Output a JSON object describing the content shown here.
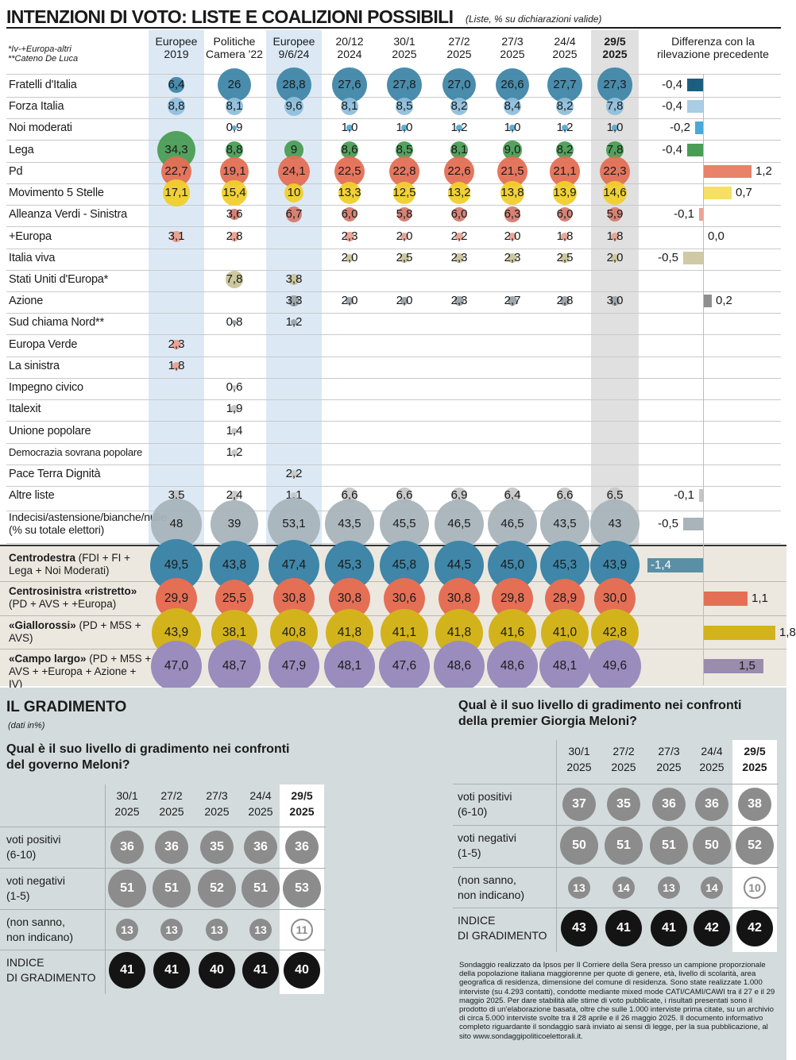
{
  "title": {
    "main": "INTENZIONI DI VOTO: LISTE E COALIZIONI POSSIBILI",
    "subtitle": "(Liste, % su dichiarazioni valide)"
  },
  "notes": {
    "line1": "*Iv-+Europa-altri",
    "line2": "**Cateno De Luca"
  },
  "diff_header": {
    "line1": "Differenza con la",
    "line2": "rilevazione precedente"
  },
  "columns": [
    {
      "line1": "Europee",
      "line2": "2019"
    },
    {
      "line1": "Politiche",
      "line2": "Camera '22"
    },
    {
      "line1": "Europee",
      "line2": "9/6/24"
    },
    {
      "line1": "20/12",
      "line2": "2024"
    },
    {
      "line1": "30/1",
      "line2": "2025"
    },
    {
      "line1": "27/2",
      "line2": "2025"
    },
    {
      "line1": "27/3",
      "line2": "2025"
    },
    {
      "line1": "24/4",
      "line2": "2025"
    },
    {
      "line1": "29/5",
      "line2": "2025"
    }
  ],
  "colors": {
    "fdi": "#3f86a8",
    "fi": "#8fbfdc",
    "nm": "#5aa9d2",
    "lega": "#4a9d55",
    "pd": "#e46f55",
    "m5s": "#f0cf2c",
    "avs": "#d37c6f",
    "piu_europa": "#e8a090",
    "italia_viva": "#c9c49a",
    "suef": "#c9c49a",
    "azione": "#9aa2a8",
    "scn": "#9aa2a8",
    "ev": "#e8a090",
    "lasin": "#e8a090",
    "altre": "#c7c7c7",
    "indecisi": "#a8b4bb",
    "centrodestra": "#3f86a8",
    "centrosinistra": "#e46f55",
    "giallorossi": "#d3b31c",
    "campo_largo": "#9a8cbd",
    "diff_fdi": "#1c5e82",
    "diff_fi": "#a8cde4",
    "diff_nm": "#4aa8d8",
    "diff_lega": "#4a9d55",
    "diff_pd": "#e8826a",
    "diff_m5s": "#f6df62",
    "diff_avs": "#eaa395",
    "diff_iv": "#cfcaa5",
    "diff_azione": "#8f8f8f",
    "diff_altre": "#c4c4c4",
    "diff_indecisi": "#a9b4ba",
    "diff_cdx": "#5a8fa5",
    "diff_csx": "#e46f55",
    "diff_gr": "#d3b31c",
    "diff_cl": "#9a8cad"
  },
  "chart_data": [
    {
      "type": "table",
      "title": "INTENZIONI DI VOTO: LISTE E COALIZIONI POSSIBILI",
      "subtitle": "(Liste, % su dichiarazioni valide)",
      "columns": [
        "Europee 2019",
        "Politiche Camera '22",
        "Europee 9/6/24",
        "20/12 2024",
        "30/1 2025",
        "27/2 2025",
        "27/3 2025",
        "24/4 2025",
        "29/5 2025"
      ],
      "rows": [
        {
          "key": "fdi",
          "name": "Fratelli d'Italia",
          "values": [
            "6,4",
            "26",
            "28,8",
            "27,6",
            "27,8",
            "27,0",
            "26,6",
            "27,7",
            "27,3"
          ],
          "diff": "-0,4"
        },
        {
          "key": "fi",
          "name": "Forza Italia",
          "values": [
            "8,8",
            "8,1",
            "9,6",
            "8,1",
            "8,5",
            "8,2",
            "8,4",
            "8,2",
            "7,8"
          ],
          "diff": "-0,4"
        },
        {
          "key": "nm",
          "name": "Noi moderati",
          "values": [
            null,
            "0,9",
            null,
            "1,0",
            "1,0",
            "1,2",
            "1,0",
            "1,2",
            "1,0"
          ],
          "diff": "-0,2"
        },
        {
          "key": "lega",
          "name": "Lega",
          "values": [
            "34,3",
            "8,8",
            "9",
            "8,6",
            "8,5",
            "8,1",
            "9,0",
            "8,2",
            "7,8"
          ],
          "diff": "-0,4"
        },
        {
          "key": "pd",
          "name": "Pd",
          "values": [
            "22,7",
            "19,1",
            "24,1",
            "22,5",
            "22,8",
            "22,6",
            "21,5",
            "21,1",
            "22,3"
          ],
          "diff": "1,2"
        },
        {
          "key": "m5s",
          "name": "Movimento 5 Stelle",
          "values": [
            "17,1",
            "15,4",
            "10",
            "13,3",
            "12,5",
            "13,2",
            "13,8",
            "13,9",
            "14,6"
          ],
          "diff": "0,7"
        },
        {
          "key": "avs",
          "name": "Alleanza Verdi - Sinistra",
          "values": [
            null,
            "3,6",
            "6,7",
            "6,0",
            "5,8",
            "6,0",
            "6,3",
            "6,0",
            "5,9"
          ],
          "diff": "-0,1"
        },
        {
          "key": "piu_europa",
          "name": "+Europa",
          "values": [
            "3,1",
            "2,8",
            null,
            "2,3",
            "2,0",
            "2,2",
            "2,0",
            "1,8",
            "1,8"
          ],
          "diff": "0,0"
        },
        {
          "key": "italia_viva",
          "name": "Italia viva",
          "values": [
            null,
            null,
            null,
            "2,0",
            "2,5",
            "2,3",
            "2,3",
            "2,5",
            "2,0"
          ],
          "diff": "-0,5"
        },
        {
          "key": "suef",
          "name": "Stati Uniti d'Europa*",
          "values": [
            null,
            "7,8",
            "3,8",
            null,
            null,
            null,
            null,
            null,
            null
          ],
          "diff": null
        },
        {
          "key": "azione",
          "name": "Azione",
          "values": [
            null,
            null,
            "3,3",
            "2,0",
            "2,0",
            "2,3",
            "2,7",
            "2,8",
            "3,0"
          ],
          "diff": "0,2"
        },
        {
          "key": "scn",
          "name": "Sud chiama Nord**",
          "values": [
            null,
            "0,8",
            "1,2",
            null,
            null,
            null,
            null,
            null,
            null
          ],
          "diff": null
        },
        {
          "key": "ev",
          "name": "Europa Verde",
          "values": [
            "2,3",
            null,
            null,
            null,
            null,
            null,
            null,
            null,
            null
          ],
          "diff": null
        },
        {
          "key": "lasin",
          "name": "La sinistra",
          "values": [
            "1,8",
            null,
            null,
            null,
            null,
            null,
            null,
            null,
            null
          ],
          "diff": null
        },
        {
          "key": "ic",
          "name": "Impegno civico",
          "values": [
            null,
            "0,6",
            null,
            null,
            null,
            null,
            null,
            null,
            null
          ],
          "diff": null
        },
        {
          "key": "italexit",
          "name": "Italexit",
          "values": [
            null,
            "1,9",
            null,
            null,
            null,
            null,
            null,
            null,
            null
          ],
          "diff": null
        },
        {
          "key": "up",
          "name": "Unione popolare",
          "values": [
            null,
            "1,4",
            null,
            null,
            null,
            null,
            null,
            null,
            null
          ],
          "diff": null
        },
        {
          "key": "dsp",
          "name": "Democrazia sovrana popolare",
          "values": [
            null,
            "1,2",
            null,
            null,
            null,
            null,
            null,
            null,
            null
          ],
          "diff": null
        },
        {
          "key": "ptd",
          "name": "Pace Terra Dignità",
          "values": [
            null,
            null,
            "2,2",
            null,
            null,
            null,
            null,
            null,
            null
          ],
          "diff": null
        },
        {
          "key": "altre",
          "name": "Altre liste",
          "values": [
            "3,5",
            "2,4",
            "1,1",
            "6,6",
            "6,6",
            "6,9",
            "6,4",
            "6,6",
            "6,5"
          ],
          "diff": "-0,1"
        },
        {
          "key": "indecisi",
          "name": "Indecisi/astensione/bianche/nulle (% su totale elettori)",
          "values": [
            "48",
            "39",
            "53,1",
            "43,5",
            "45,5",
            "46,5",
            "46,5",
            "43,5",
            "43"
          ],
          "diff": "-0,5"
        }
      ],
      "coalitions": [
        {
          "key": "centrodestra",
          "name": "Centrodestra",
          "detail": "(FDI + FI + Lega + Noi Moderati)",
          "values": [
            "49,5",
            "43,8",
            "47,4",
            "45,3",
            "45,8",
            "44,5",
            "45,0",
            "45,3",
            "43,9"
          ],
          "diff": "-1,4"
        },
        {
          "key": "centrosinistra",
          "name": "Centrosinistra «ristretto»",
          "detail": "(PD + AVS + +Europa)",
          "values": [
            "29,9",
            "25,5",
            "30,8",
            "30,8",
            "30,6",
            "30,8",
            "29,8",
            "28,9",
            "30,0"
          ],
          "diff": "1,1"
        },
        {
          "key": "giallorossi",
          "name": "«Giallorossi»",
          "detail": "(PD + M5S + AVS)",
          "values": [
            "43,9",
            "38,1",
            "40,8",
            "41,8",
            "41,1",
            "41,8",
            "41,6",
            "41,0",
            "42,8"
          ],
          "diff": "1,8"
        },
        {
          "key": "campo_largo",
          "name": "«Campo largo»",
          "detail": "(PD + M5S + AVS + +Europa + Azione + IV)",
          "values": [
            "47,0",
            "48,7",
            "47,9",
            "48,1",
            "47,6",
            "48,6",
            "48,6",
            "48,1",
            "49,6"
          ],
          "diff": "1,5"
        }
      ]
    },
    {
      "type": "table",
      "title": "Qual è il suo livello di gradimento nei confronti del governo Meloni?",
      "columns": [
        "30/1 2025",
        "27/2 2025",
        "27/3 2025",
        "24/4 2025",
        "29/5 2025"
      ],
      "rows": [
        {
          "name": "voti positivi (6-10)",
          "values": [
            36,
            36,
            35,
            36,
            36
          ]
        },
        {
          "name": "voti negativi (1-5)",
          "values": [
            51,
            51,
            52,
            51,
            53
          ]
        },
        {
          "name": "(non sanno, non indicano)",
          "values": [
            13,
            13,
            13,
            13,
            11
          ]
        },
        {
          "name": "INDICE DI GRADIMENTO",
          "values": [
            41,
            41,
            40,
            41,
            40
          ]
        }
      ]
    },
    {
      "type": "table",
      "title": "Qual è il suo livello di gradimento nei confronti della premier Giorgia Meloni?",
      "columns": [
        "30/1 2025",
        "27/2 2025",
        "27/3 2025",
        "24/4 2025",
        "29/5 2025"
      ],
      "rows": [
        {
          "name": "voti positivi (6-10)",
          "values": [
            37,
            35,
            36,
            36,
            38
          ]
        },
        {
          "name": "voti negativi (1-5)",
          "values": [
            50,
            51,
            51,
            50,
            52
          ]
        },
        {
          "name": "(non sanno, non indicano)",
          "values": [
            13,
            14,
            13,
            14,
            10
          ]
        },
        {
          "name": "INDICE DI GRADIMENTO",
          "values": [
            43,
            41,
            41,
            42,
            42
          ]
        }
      ]
    }
  ],
  "gradimento": {
    "heading": "IL GRADIMENTO",
    "note": "(dati in%)",
    "governo": {
      "q1": "Qual è il suo livello di gradimento nei confronti",
      "q2": "del governo Meloni?",
      "cols": [
        {
          "l1": "30/1",
          "l2": "2025"
        },
        {
          "l1": "27/2",
          "l2": "2025"
        },
        {
          "l1": "27/3",
          "l2": "2025"
        },
        {
          "l1": "24/4",
          "l2": "2025"
        },
        {
          "l1": "29/5",
          "l2": "2025"
        }
      ],
      "rows": [
        {
          "l1": "voti positivi",
          "l2": "(6-10)",
          "values": [
            36,
            36,
            35,
            36,
            36
          ]
        },
        {
          "l1": "voti negativi",
          "l2": "(1-5)",
          "values": [
            51,
            51,
            52,
            51,
            53
          ]
        },
        {
          "l1": "(non sanno,",
          "l2": "non indicano)",
          "values": [
            13,
            13,
            13,
            13,
            11
          ]
        },
        {
          "l1": "INDICE",
          "l2": "DI GRADIMENTO",
          "values": [
            41,
            41,
            40,
            41,
            40
          ]
        }
      ]
    },
    "premier": {
      "q1": "Qual è il suo livello di gradimento nei confronti",
      "q2": "della premier Giorgia Meloni?",
      "cols": [
        {
          "l1": "30/1",
          "l2": "2025"
        },
        {
          "l1": "27/2",
          "l2": "2025"
        },
        {
          "l1": "27/3",
          "l2": "2025"
        },
        {
          "l1": "24/4",
          "l2": "2025"
        },
        {
          "l1": "29/5",
          "l2": "2025"
        }
      ],
      "rows": [
        {
          "l1": "voti positivi",
          "l2": "(6-10)",
          "values": [
            37,
            35,
            36,
            36,
            38
          ]
        },
        {
          "l1": "voti negativi",
          "l2": "(1-5)",
          "values": [
            50,
            51,
            51,
            50,
            52
          ]
        },
        {
          "l1": "(non sanno,",
          "l2": "non indicano)",
          "values": [
            13,
            14,
            13,
            14,
            10
          ]
        },
        {
          "l1": "INDICE",
          "l2": "DI GRADIMENTO",
          "values": [
            43,
            41,
            41,
            42,
            42
          ]
        }
      ]
    }
  },
  "methodology": "Sondaggio realizzato da Ipsos per Il Corriere della Sera presso un campione proporzionale della popolazione italiana maggiorenne per quote di genere, età, livello di scolarità, area geografica di residenza, dimensione del comune di residenza. Sono state realizzate 1.000 interviste (su 4.293 contatti), condotte mediante mixed mode CATI/CAMI/CAWI tra il 27 e il 29 maggio 2025. Per dare stabilità alle stime di voto pubblicate, i risultati presentati sono il prodotto di un'elaborazione basata, oltre che sulle 1.000 interviste prima citate, su un archivio di circa 5.000 interviste svolte tra il 28 aprile e il 26 maggio 2025. Il documento informativo completo riguardante il sondaggio sarà inviato ai sensi di legge, per la sua pubblicazione, al sito www.sondaggipoliticoelettorali.it."
}
